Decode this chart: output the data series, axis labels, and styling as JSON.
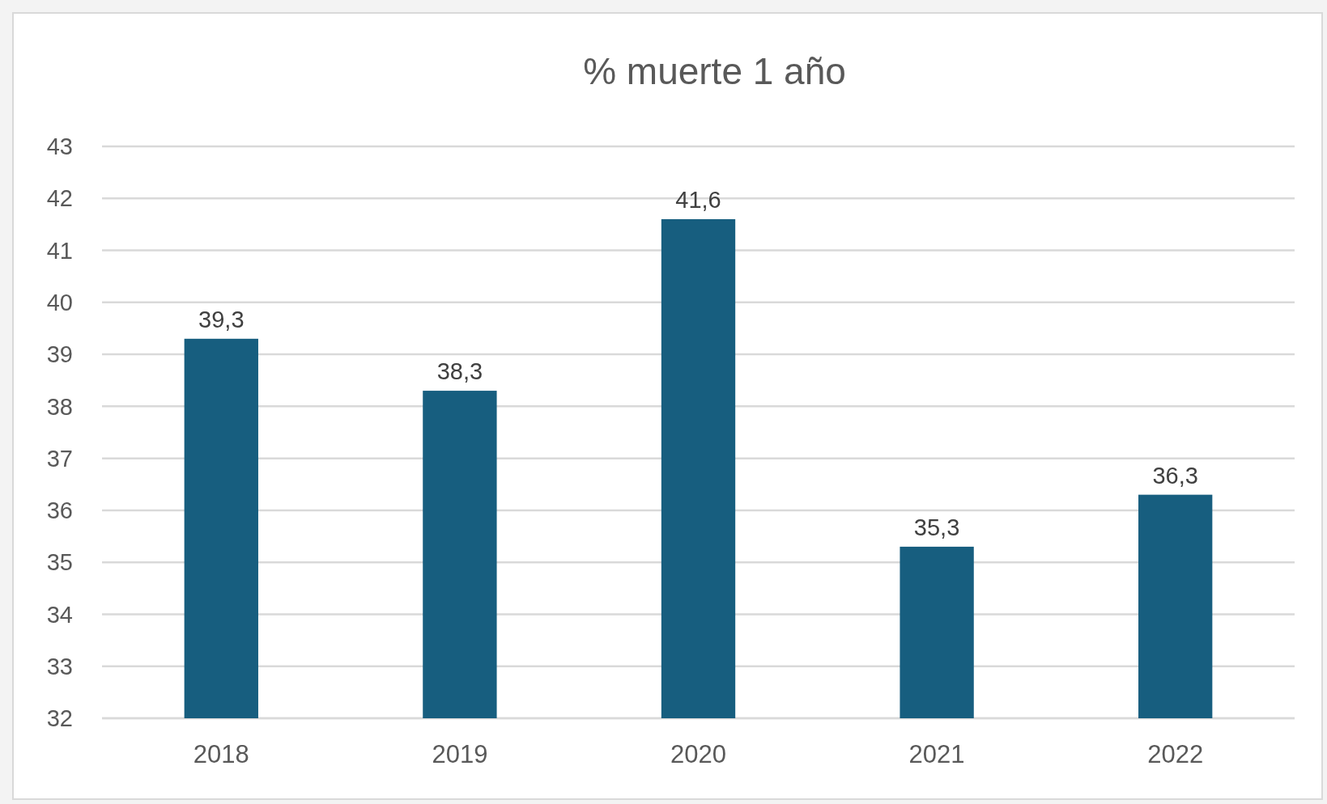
{
  "chart_data": {
    "type": "bar",
    "title": "% muerte 1 año",
    "categories": [
      "2018",
      "2019",
      "2020",
      "2021",
      "2022"
    ],
    "values": [
      39.3,
      38.3,
      41.6,
      35.3,
      36.3
    ],
    "value_labels": [
      "39,3",
      "38,3",
      "41,6",
      "35,3",
      "36,3"
    ],
    "color": "#175e7f",
    "ylim": [
      32,
      43
    ],
    "yticks": [
      32,
      33,
      34,
      35,
      36,
      37,
      38,
      39,
      40,
      41,
      42,
      43
    ],
    "grid": "y"
  }
}
